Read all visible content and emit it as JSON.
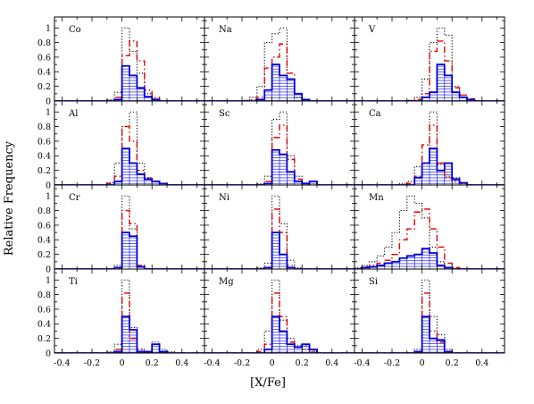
{
  "chart_data": {
    "type": "histogram-grid",
    "xlabel": "[X/Fe]",
    "ylabel": "Relative Frequency",
    "xlim": [
      -0.45,
      0.55
    ],
    "ylim": [
      0,
      1.15
    ],
    "x_ticks": [
      "-0.4",
      "-0.2",
      "0",
      "0.2",
      "0.4"
    ],
    "x_tick_values": [
      -0.4,
      -0.2,
      0,
      0.2,
      0.4
    ],
    "y_ticks": [
      "0",
      "0.2",
      "0.4",
      "0.6",
      "0.8",
      "1"
    ],
    "y_tick_values": [
      0,
      0.2,
      0.4,
      0.6,
      0.8,
      1
    ],
    "bin_width": 0.05,
    "bin_starts": [
      -0.45,
      -0.4,
      -0.35,
      -0.3,
      -0.25,
      -0.2,
      -0.15,
      -0.1,
      -0.05,
      0,
      0.05,
      0.1,
      0.15,
      0.2,
      0.25,
      0.3,
      0.35,
      0.4,
      0.45,
      0.5
    ],
    "series_styles": [
      {
        "key": "dotted",
        "color": "#000000",
        "dash": "1.2,2"
      },
      {
        "key": "dashed",
        "color": "#dd0000",
        "dash": "7,3,1.5,3"
      },
      {
        "key": "solid",
        "color": "#0000dd",
        "dash": "",
        "hatched": true
      }
    ],
    "panels": [
      {
        "label": "Co",
        "dotted": [
          0,
          0,
          0,
          0,
          0,
          0,
          0,
          0.02,
          0.12,
          1.0,
          0.68,
          0.38,
          0.1,
          0.03,
          0,
          0,
          0,
          0,
          0,
          0
        ],
        "dashed": [
          0,
          0,
          0,
          0,
          0,
          0,
          0,
          0,
          0.05,
          0.62,
          0.82,
          0.55,
          0.15,
          0.05,
          0,
          0,
          0,
          0,
          0,
          0
        ],
        "solid": [
          0,
          0,
          0,
          0,
          0,
          0,
          0,
          0,
          0.02,
          0.48,
          0.35,
          0.18,
          0.06,
          0.02,
          0,
          0,
          0,
          0,
          0,
          0
        ]
      },
      {
        "label": "Na",
        "dotted": [
          0,
          0,
          0,
          0,
          0,
          0.01,
          0.05,
          0.2,
          0.8,
          0.92,
          1.0,
          0.3,
          0.05,
          0,
          0,
          0,
          0,
          0,
          0,
          0
        ],
        "dashed": [
          0,
          0,
          0,
          0,
          0,
          0,
          0.02,
          0.05,
          0.45,
          0.6,
          0.78,
          0.38,
          0.1,
          0.02,
          0,
          0,
          0,
          0,
          0,
          0
        ],
        "solid": [
          0,
          0,
          0,
          0,
          0,
          0,
          0,
          0.02,
          0.15,
          0.5,
          0.35,
          0.3,
          0.1,
          0.02,
          0,
          0,
          0,
          0,
          0,
          0
        ]
      },
      {
        "label": "V",
        "dotted": [
          0,
          0,
          0,
          0,
          0,
          0,
          0,
          0.01,
          0.05,
          0.3,
          0.8,
          1.0,
          0.9,
          0.2,
          0.08,
          0.02,
          0,
          0,
          0,
          0
        ],
        "dashed": [
          0,
          0,
          0,
          0,
          0,
          0,
          0,
          0,
          0.02,
          0.1,
          0.68,
          0.82,
          0.55,
          0.18,
          0.08,
          0.03,
          0,
          0,
          0,
          0
        ],
        "solid": [
          0,
          0,
          0,
          0,
          0,
          0,
          0,
          0,
          0,
          0.05,
          0.12,
          0.5,
          0.35,
          0.12,
          0.05,
          0.02,
          0,
          0,
          0,
          0
        ]
      },
      {
        "label": "Al",
        "dotted": [
          0,
          0,
          0,
          0,
          0,
          0,
          0,
          0.03,
          0.3,
          0.8,
          1.0,
          0.3,
          0.1,
          0.05,
          0.02,
          0,
          0,
          0,
          0,
          0
        ],
        "dashed": [
          0,
          0,
          0,
          0,
          0,
          0,
          0,
          0.02,
          0.12,
          0.8,
          0.6,
          0.2,
          0.1,
          0.05,
          0.02,
          0,
          0,
          0,
          0,
          0
        ],
        "solid": [
          0,
          0,
          0,
          0,
          0,
          0,
          0,
          0,
          0.05,
          0.5,
          0.3,
          0.15,
          0.08,
          0.05,
          0.02,
          0,
          0,
          0,
          0,
          0
        ]
      },
      {
        "label": "Sc",
        "dotted": [
          0,
          0,
          0,
          0,
          0,
          0,
          0,
          0.02,
          0.12,
          0.9,
          1.0,
          0.4,
          0.12,
          0.03,
          0,
          0,
          0,
          0,
          0,
          0
        ],
        "dashed": [
          0,
          0,
          0,
          0,
          0,
          0,
          0,
          0,
          0.05,
          0.65,
          0.82,
          0.35,
          0.08,
          0.02,
          0,
          0,
          0,
          0,
          0,
          0
        ],
        "solid": [
          0,
          0,
          0,
          0,
          0,
          0,
          0,
          0,
          0.02,
          0.48,
          0.42,
          0.18,
          0.05,
          0.02,
          0.05,
          0,
          0,
          0,
          0,
          0
        ]
      },
      {
        "label": "Ca",
        "dotted": [
          0,
          0,
          0,
          0,
          0,
          0,
          0.02,
          0.05,
          0.25,
          0.3,
          1.0,
          0.28,
          0.12,
          0.1,
          0.03,
          0,
          0,
          0,
          0,
          0
        ],
        "dashed": [
          0,
          0,
          0,
          0,
          0,
          0,
          0,
          0.02,
          0.12,
          0.55,
          0.82,
          0.3,
          0.1,
          0.05,
          0.02,
          0,
          0,
          0,
          0,
          0
        ],
        "solid": [
          0,
          0,
          0,
          0,
          0,
          0,
          0,
          0,
          0.1,
          0.3,
          0.5,
          0.2,
          0.3,
          0.08,
          0.03,
          0,
          0,
          0,
          0,
          0
        ]
      },
      {
        "label": "Cr",
        "dotted": [
          0,
          0,
          0,
          0,
          0,
          0,
          0,
          0,
          0.05,
          1.0,
          0.55,
          0.05,
          0,
          0,
          0,
          0,
          0,
          0,
          0,
          0
        ],
        "dashed": [
          0,
          0,
          0,
          0,
          0,
          0,
          0,
          0,
          0.02,
          0.8,
          0.62,
          0.05,
          0,
          0,
          0,
          0,
          0,
          0,
          0,
          0
        ],
        "solid": [
          0,
          0,
          0,
          0,
          0,
          0,
          0,
          0,
          0.02,
          0.5,
          0.45,
          0.03,
          0,
          0,
          0,
          0,
          0,
          0,
          0,
          0
        ]
      },
      {
        "label": "Ni",
        "dotted": [
          0,
          0,
          0,
          0,
          0,
          0,
          0,
          0.02,
          0.08,
          1.0,
          0.62,
          0.12,
          0.02,
          0,
          0,
          0,
          0,
          0,
          0,
          0
        ],
        "dashed": [
          0,
          0,
          0,
          0,
          0,
          0,
          0,
          0,
          0.02,
          0.82,
          0.5,
          0.05,
          0,
          0,
          0,
          0,
          0,
          0,
          0,
          0
        ],
        "solid": [
          0,
          0,
          0,
          0,
          0,
          0,
          0,
          0,
          0.02,
          0.5,
          0.2,
          0.02,
          0,
          0,
          0,
          0,
          0,
          0,
          0,
          0
        ]
      },
      {
        "label": "Mn",
        "dotted": [
          0.02,
          0.05,
          0.1,
          0.18,
          0.3,
          0.5,
          0.8,
          1.0,
          0.9,
          0.7,
          0.3,
          0.1,
          0.02,
          0,
          0,
          0,
          0,
          0,
          0,
          0
        ],
        "dashed": [
          0,
          0.03,
          0.05,
          0.08,
          0.12,
          0.2,
          0.4,
          0.55,
          0.78,
          0.82,
          0.55,
          0.3,
          0.08,
          0.02,
          0,
          0,
          0,
          0,
          0,
          0
        ],
        "solid": [
          0,
          0.02,
          0.03,
          0.05,
          0.08,
          0.1,
          0.15,
          0.18,
          0.2,
          0.28,
          0.22,
          0.05,
          0.02,
          0,
          0,
          0,
          0,
          0,
          0,
          0
        ]
      },
      {
        "label": "Ti",
        "dotted": [
          0,
          0,
          0,
          0,
          0,
          0,
          0,
          0.02,
          0.12,
          1.0,
          0.35,
          0.05,
          0.02,
          0.15,
          0.05,
          0.02,
          0,
          0,
          0,
          0
        ],
        "dashed": [
          0,
          0,
          0,
          0,
          0,
          0,
          0,
          0,
          0.05,
          0.82,
          0.2,
          0.05,
          0.02,
          0.12,
          0.02,
          0,
          0,
          0,
          0,
          0
        ],
        "solid": [
          0,
          0,
          0,
          0,
          0,
          0,
          0,
          0,
          0.02,
          0.5,
          0.32,
          0.02,
          0.02,
          0.12,
          0.02,
          0,
          0,
          0,
          0,
          0
        ]
      },
      {
        "label": "Mg",
        "dotted": [
          0,
          0,
          0,
          0,
          0,
          0,
          0,
          0.05,
          0.3,
          1.0,
          0.45,
          0.2,
          0.1,
          0.05,
          0.02,
          0,
          0,
          0,
          0,
          0
        ],
        "dashed": [
          0,
          0,
          0,
          0,
          0,
          0,
          0,
          0.02,
          0.12,
          0.82,
          0.5,
          0.15,
          0.08,
          0.1,
          0.03,
          0,
          0,
          0,
          0,
          0
        ],
        "solid": [
          0,
          0,
          0,
          0,
          0,
          0,
          0,
          0,
          0.05,
          0.5,
          0.3,
          0.12,
          0.08,
          0.12,
          0.05,
          0,
          0,
          0,
          0,
          0
        ]
      },
      {
        "label": "Si",
        "dotted": [
          0,
          0,
          0,
          0,
          0,
          0,
          0,
          0,
          0.05,
          1.0,
          0.5,
          0.25,
          0.05,
          0,
          0,
          0,
          0,
          0,
          0,
          0
        ],
        "dashed": [
          0,
          0,
          0,
          0,
          0,
          0,
          0,
          0,
          0.02,
          0.82,
          0.3,
          0.15,
          0.02,
          0,
          0,
          0,
          0,
          0,
          0,
          0
        ],
        "solid": [
          0,
          0,
          0,
          0,
          0,
          0,
          0,
          0,
          0.02,
          0.5,
          0.2,
          0.18,
          0.02,
          0,
          0,
          0,
          0,
          0,
          0,
          0
        ]
      }
    ]
  }
}
